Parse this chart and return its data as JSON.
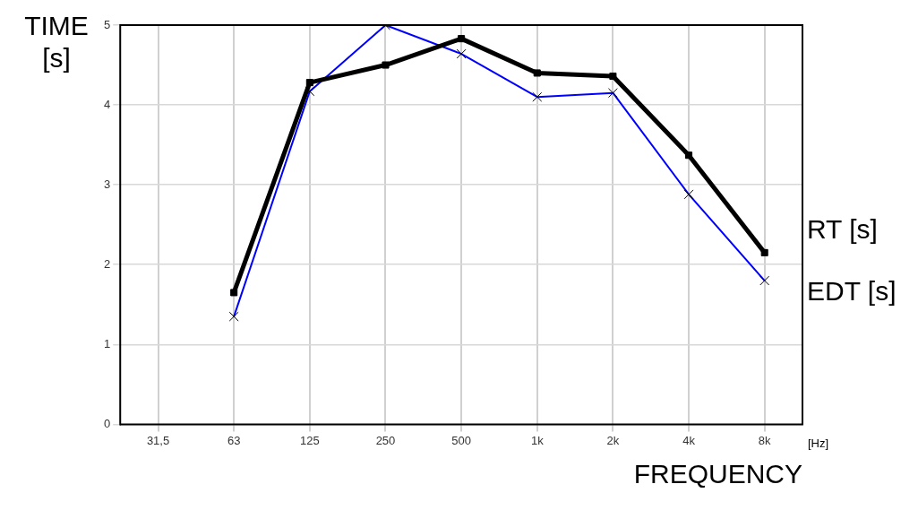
{
  "chart_data": {
    "type": "line",
    "xlabel": "FREQUENCY",
    "ylabel": "TIME [s]",
    "categories": [
      "31,5",
      "63",
      "125",
      "250",
      "500",
      "1k",
      "2k",
      "4k",
      "8k"
    ],
    "series": [
      {
        "name": "RT [s]",
        "color": "#000000",
        "marker": "square",
        "values": [
          null,
          1.65,
          4.28,
          4.5,
          4.83,
          4.4,
          4.36,
          3.37,
          2.15
        ]
      },
      {
        "name": "EDT [s]",
        "color": "#0000ff",
        "marker": "cross",
        "values": [
          null,
          1.35,
          4.17,
          5.0,
          4.64,
          4.1,
          4.15,
          2.88,
          1.8
        ]
      }
    ],
    "ylim": [
      0,
      5
    ],
    "yticks": [
      0,
      1,
      2,
      3,
      4,
      5
    ],
    "grid": true,
    "legend": false,
    "annotations": [
      "[Hz]"
    ]
  }
}
